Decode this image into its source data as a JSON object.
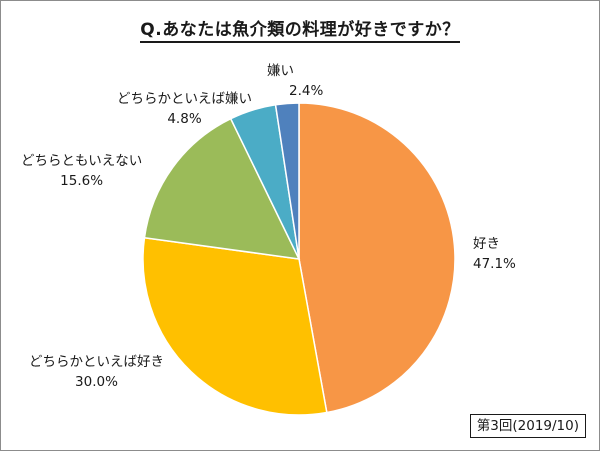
{
  "chart_data": {
    "type": "pie",
    "title": "Q.あなたは魚介類の料理が好きですか？",
    "slices": [
      {
        "label": "好き",
        "value": 47.1,
        "display": "47.1%",
        "color": "#F79646"
      },
      {
        "label": "どちらかといえば好き",
        "value": 30.0,
        "display": "30.0%",
        "color": "#FFC000"
      },
      {
        "label": "どちらともいえない",
        "value": 15.6,
        "display": "15.6%",
        "color": "#9BBB59"
      },
      {
        "label": "どちらかといえば嫌い",
        "value": 4.8,
        "display": "4.8%",
        "color": "#4BACC6"
      },
      {
        "label": "嫌い",
        "value": 2.4,
        "display": "2.4%",
        "color": "#4F81BD"
      }
    ],
    "start": "12 o'clock",
    "direction": "clockwise",
    "legend": "none",
    "note": "第3回(2019/10)"
  }
}
